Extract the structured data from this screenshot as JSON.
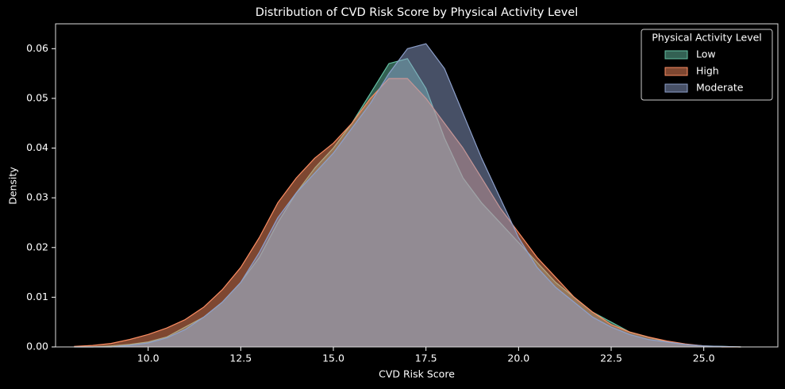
{
  "chart_data": {
    "type": "kde",
    "title": "Distribution of CVD Risk Score by Physical Activity Level",
    "x_label": "CVD Risk Score",
    "y_label": "Density",
    "legend_title": "Physical Activity Level",
    "legend_position": "upper right",
    "x": [
      8,
      8.5,
      9,
      9.5,
      10,
      10.5,
      11,
      11.5,
      12,
      12.5,
      13,
      13.5,
      14,
      14.5,
      15,
      15.5,
      16,
      16.5,
      17,
      17.5,
      18,
      18.5,
      19,
      19.5,
      20,
      20.5,
      21,
      21.5,
      22,
      22.5,
      23,
      23.5,
      24,
      24.5,
      25,
      25.5,
      26
    ],
    "series": [
      {
        "name": "Low",
        "color": "#66c2a5",
        "values": [
          0,
          0,
          0.0002,
          0.0005,
          0.001,
          0.002,
          0.004,
          0.006,
          0.009,
          0.013,
          0.018,
          0.025,
          0.031,
          0.036,
          0.04,
          0.045,
          0.051,
          0.057,
          0.058,
          0.052,
          0.042,
          0.034,
          0.029,
          0.025,
          0.021,
          0.017,
          0.013,
          0.01,
          0.007,
          0.005,
          0.003,
          0.002,
          0.001,
          0.0005,
          0.0002,
          0.0001,
          0
        ]
      },
      {
        "name": "High",
        "color": "#fc8d62",
        "values": [
          0.0001,
          0.0003,
          0.0007,
          0.0015,
          0.0025,
          0.0038,
          0.0055,
          0.008,
          0.0115,
          0.016,
          0.022,
          0.029,
          0.034,
          0.038,
          0.041,
          0.045,
          0.05,
          0.054,
          0.054,
          0.05,
          0.045,
          0.04,
          0.034,
          0.028,
          0.023,
          0.018,
          0.014,
          0.01,
          0.007,
          0.0045,
          0.003,
          0.002,
          0.0012,
          0.0006,
          0.0002,
          0,
          0
        ]
      },
      {
        "name": "Moderate",
        "color": "#8da0cb",
        "values": [
          0,
          0,
          0,
          0.0003,
          0.0008,
          0.0018,
          0.0035,
          0.006,
          0.009,
          0.013,
          0.019,
          0.026,
          0.031,
          0.035,
          0.039,
          0.044,
          0.049,
          0.055,
          0.06,
          0.061,
          0.056,
          0.047,
          0.038,
          0.03,
          0.022,
          0.016,
          0.012,
          0.009,
          0.006,
          0.004,
          0.0025,
          0.0015,
          0.001,
          0.0005,
          0.0002,
          0.0001,
          0
        ]
      }
    ],
    "xlim": [
      7.5,
      27.0
    ],
    "ylim": [
      0,
      0.065
    ],
    "xticks": [
      {
        "value": 10,
        "label": "10.0"
      },
      {
        "value": 12.5,
        "label": "12.5"
      },
      {
        "value": 15,
        "label": "15.0"
      },
      {
        "value": 17.5,
        "label": "17.5"
      },
      {
        "value": 20,
        "label": "20.0"
      },
      {
        "value": 22.5,
        "label": "22.5"
      },
      {
        "value": 25,
        "label": "25.0"
      }
    ],
    "yticks": [
      {
        "value": 0,
        "label": "0.00"
      },
      {
        "value": 0.01,
        "label": "0.01"
      },
      {
        "value": 0.02,
        "label": "0.02"
      },
      {
        "value": 0.03,
        "label": "0.03"
      },
      {
        "value": 0.04,
        "label": "0.04"
      },
      {
        "value": 0.05,
        "label": "0.05"
      },
      {
        "value": 0.06,
        "label": "0.06"
      }
    ],
    "fill_opacity": 0.5
  }
}
